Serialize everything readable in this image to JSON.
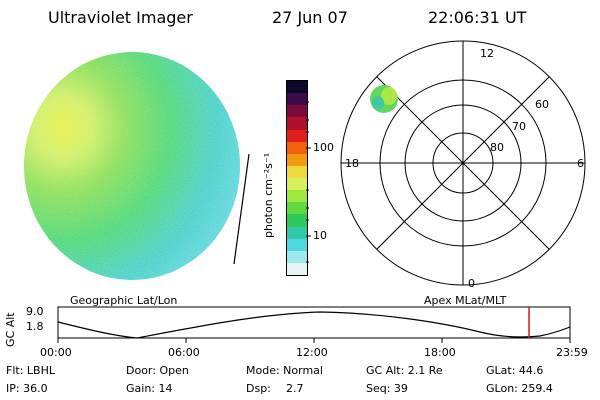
{
  "header": {
    "instrument": "Ultraviolet Imager",
    "date": "27 Jun 07",
    "time": "22:06:31 UT"
  },
  "colorbar": {
    "label": "photon cm⁻²s⁻¹",
    "tick_labels": [
      "100",
      "10"
    ],
    "colors": [
      "#0a0a2a",
      "#3a0a4a",
      "#7a0a3a",
      "#b0102a",
      "#e0201a",
      "#f06010",
      "#f09a10",
      "#f0d840",
      "#d8f060",
      "#a0e840",
      "#60d840",
      "#30c858",
      "#30c8a8",
      "#50d8e0",
      "#a0e8f0",
      "#e8f4f4"
    ]
  },
  "polar": {
    "mlt_labels": {
      "top": "12",
      "right": "6",
      "bottom": "0",
      "left": "18"
    },
    "lat_labels": [
      "60",
      "70",
      "80"
    ]
  },
  "orbit": {
    "left_label": "Geographic Lat/Lon",
    "right_label": "Apex MLat/MLT",
    "axis_label": "GC Alt",
    "y_ticks": [
      "9.0",
      "1.8"
    ],
    "x_ticks": [
      "00:00",
      "06:00",
      "12:00",
      "18:00",
      "23:59"
    ],
    "current_time_fraction": 0.92
  },
  "footer": {
    "filter": "Flt: LBHL",
    "door": "Door: Open",
    "mode": "Mode: Normal",
    "gc_alt": "GC Alt: 2.1 Re",
    "glat": "GLat:  44.6",
    "ip": "IP: 36.0",
    "gain": "Gain: 14",
    "dsp_label": "Dsp:",
    "dsp_value": "2.7",
    "seq": "Seq: 39",
    "glon": "GLon: 259.4"
  },
  "colors": {
    "accent_marker": "#d01818",
    "frame": "#000000"
  }
}
